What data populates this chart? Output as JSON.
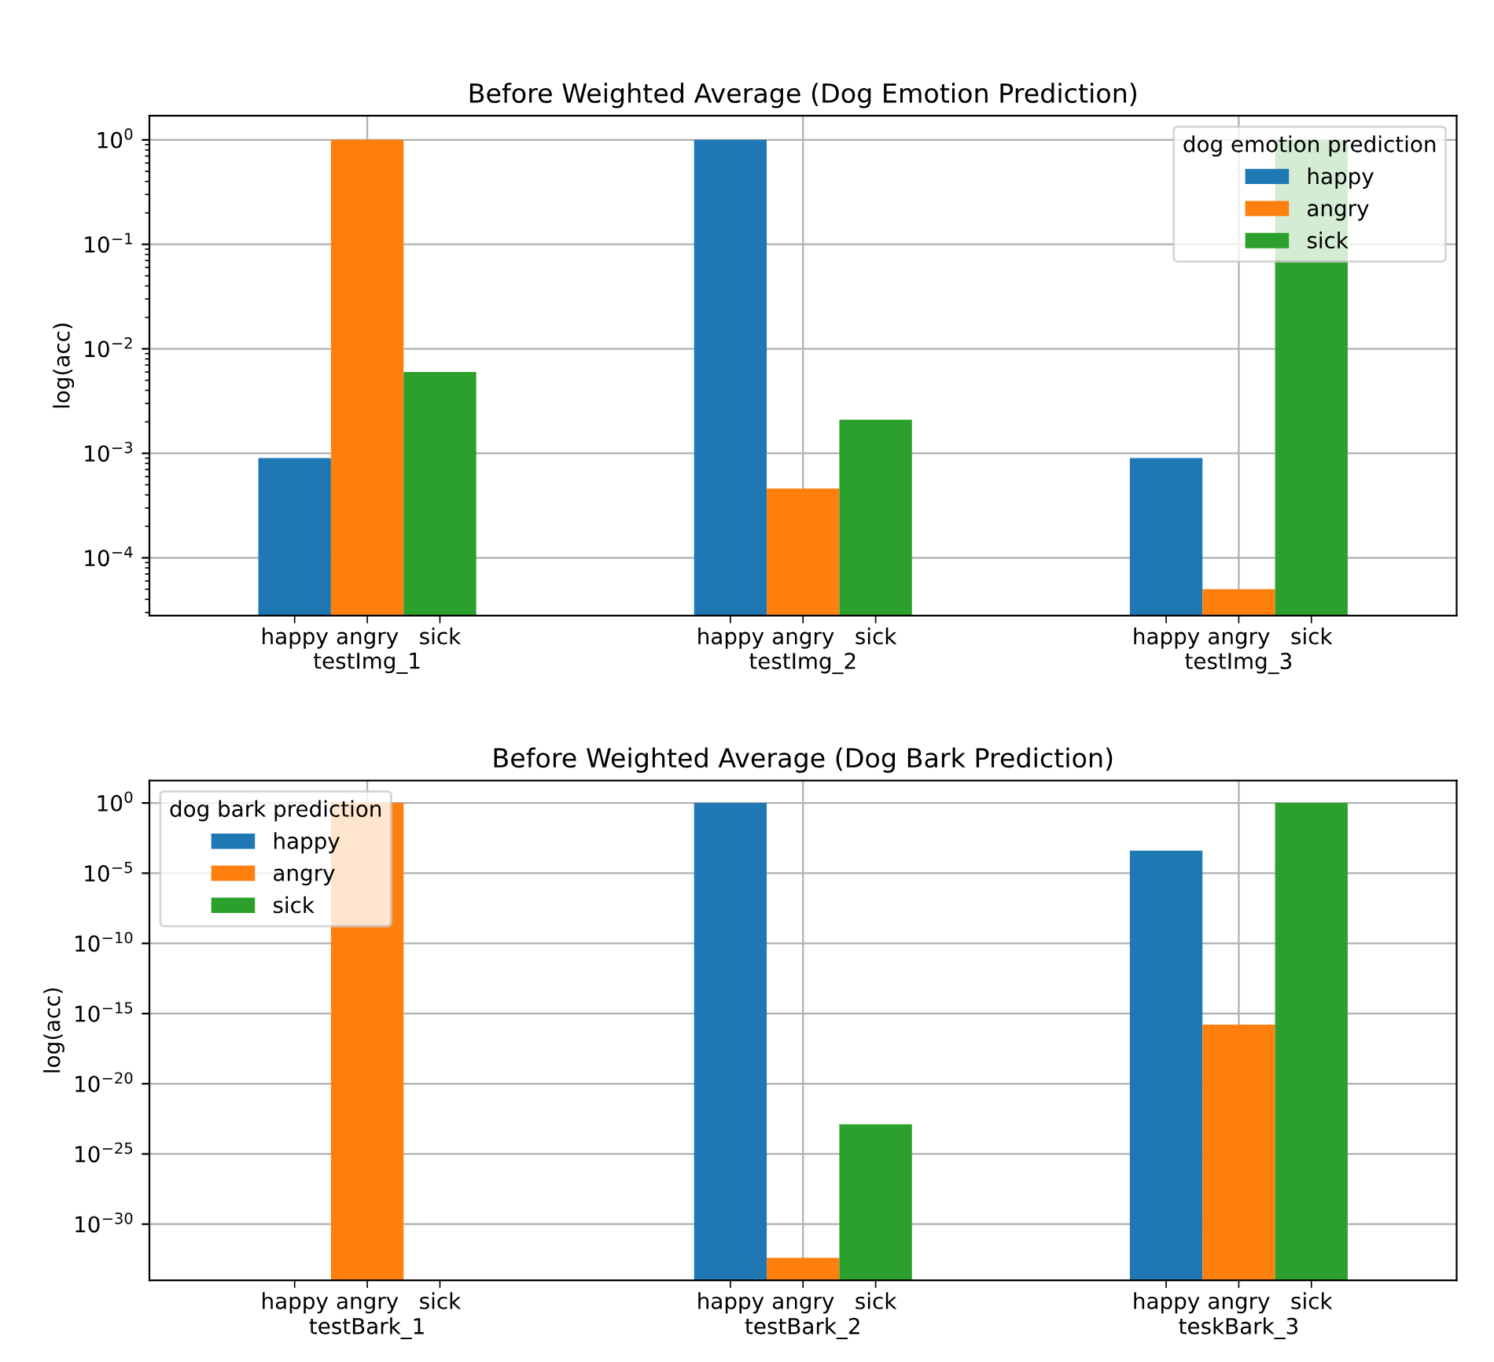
{
  "chart_data": [
    {
      "type": "bar",
      "title": "Before Weighted Average (Dog Emotion Prediction)",
      "ylabel": "log(acc)",
      "log": true,
      "grid": true,
      "legend": "top right",
      "legend_title": "dog emotion prediction",
      "categories": [
        "testImg_1",
        "testImg_2",
        "testImg_3"
      ],
      "ylim": [
        2.8e-05,
        1.7
      ],
      "yticks": [
        {
          "value": 0.0001,
          "label": "10$^{−4}$"
        },
        {
          "value": 0.001,
          "label": "10$^{−3}$"
        },
        {
          "value": 0.01,
          "label": "10$^{−2}$"
        },
        {
          "value": 0.1,
          "label": "10$^{−1}$"
        },
        {
          "value": 1,
          "label": "10$^{0}$"
        }
      ],
      "series": [
        {
          "name": "happy",
          "color": "#1f77b4",
          "values": [
            0.0009,
            1.0,
            0.0009
          ]
        },
        {
          "name": "angry",
          "color": "#ff7f0e",
          "values": [
            1.0,
            0.00046,
            5e-05
          ]
        },
        {
          "name": "sick",
          "color": "#2ca02c",
          "values": [
            0.006,
            0.0021,
            1.0
          ]
        }
      ]
    },
    {
      "type": "bar",
      "title": "Before Weighted Average (Dog Bark Prediction)",
      "ylabel": "log(acc)",
      "log": true,
      "grid": true,
      "legend": "top left",
      "legend_title": "dog bark prediction",
      "categories": [
        "testBark_1",
        "testBark_2",
        "teskBark_3"
      ],
      "ylim": [
        1e-34,
        40
      ],
      "yticks": [
        {
          "value": 1e-30,
          "label": "10$^{−30}$"
        },
        {
          "value": 1e-25,
          "label": "10$^{−25}$"
        },
        {
          "value": 1e-20,
          "label": "10$^{−20}$"
        },
        {
          "value": 1e-15,
          "label": "10$^{−15}$"
        },
        {
          "value": 1e-10,
          "label": "10$^{−10}$"
        },
        {
          "value": 1e-05,
          "label": "10$^{−5}$"
        },
        {
          "value": 1,
          "label": "10$^{0}$"
        }
      ],
      "series": [
        {
          "name": "happy",
          "color": "#1f77b4",
          "values": [
            null,
            1.0,
            0.0004
          ]
        },
        {
          "name": "angry",
          "color": "#ff7f0e",
          "values": [
            1.0,
            4e-33,
            1.6e-16
          ]
        },
        {
          "name": "sick",
          "color": "#2ca02c",
          "values": [
            null,
            1.3e-23,
            1.0
          ]
        }
      ]
    }
  ]
}
